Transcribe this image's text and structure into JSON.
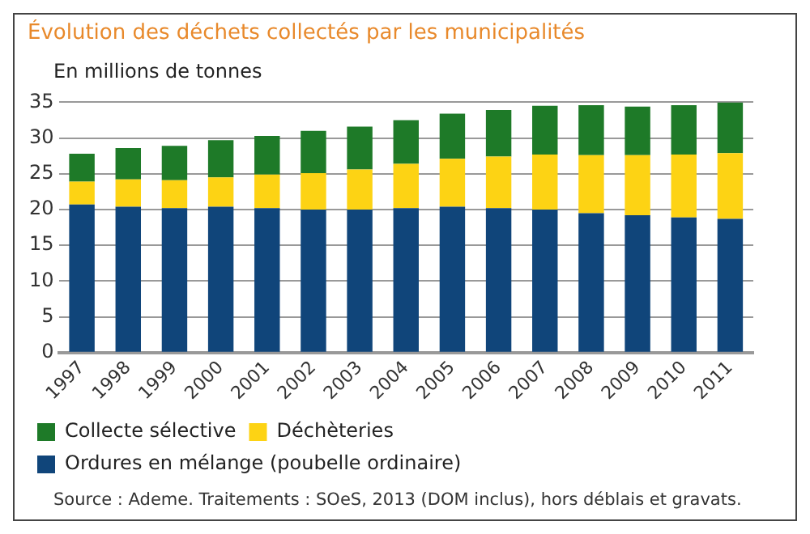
{
  "chart_data": {
    "type": "bar",
    "title": "Évolution des déchets collectés par les municipalités",
    "ylabel": "En millions de tonnes",
    "categories": [
      "1997",
      "1998",
      "1999",
      "2000",
      "2001",
      "2002",
      "2003",
      "2004",
      "2005",
      "2006",
      "2007",
      "2008",
      "2009",
      "2010",
      "2011"
    ],
    "stacked": true,
    "series": [
      {
        "name": "Ordures en mélange (poubelle ordinaire)",
        "color": "#10457a",
        "values": [
          20.7,
          20.4,
          20.2,
          20.4,
          20.2,
          20.0,
          20.0,
          20.2,
          20.4,
          20.2,
          20.0,
          19.5,
          19.2,
          18.9,
          18.7
        ]
      },
      {
        "name": "Déchèteries",
        "color": "#fdd314",
        "values": [
          3.2,
          3.8,
          3.9,
          4.1,
          4.7,
          5.1,
          5.6,
          6.2,
          6.7,
          7.2,
          7.7,
          8.1,
          8.4,
          8.8,
          9.2
        ]
      },
      {
        "name": "Collecte sélective",
        "color": "#1e7a28",
        "values": [
          3.9,
          4.4,
          4.8,
          5.2,
          5.4,
          5.9,
          6.0,
          6.1,
          6.3,
          6.5,
          6.8,
          7.0,
          6.8,
          6.9,
          7.1
        ]
      }
    ],
    "ylim": [
      0,
      35
    ],
    "yticks": [
      0,
      5,
      10,
      15,
      20,
      25,
      30,
      35
    ],
    "grid": "y",
    "legend": "bottom",
    "annotations": [
      "Source : Ademe. Traitements : SOeS, 2013 (DOM inclus), hors déblais et gravats."
    ]
  }
}
